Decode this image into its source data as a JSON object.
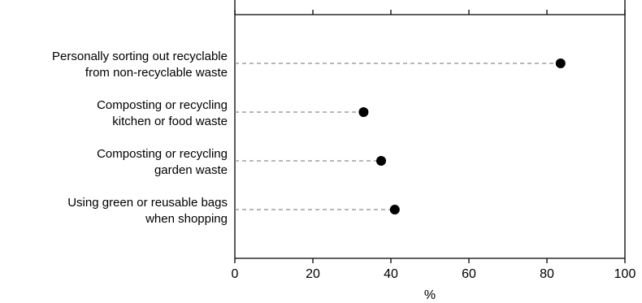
{
  "chart_data": {
    "type": "scatter",
    "orientation": "horizontal-dot",
    "title": "",
    "xlabel": "%",
    "ylabel": "",
    "xlim": [
      0,
      100
    ],
    "x_ticks": [
      0,
      20,
      40,
      60,
      80,
      100
    ],
    "x_tick_labels": [
      "0",
      "20",
      "40",
      "60",
      "80",
      "100"
    ],
    "grid": false,
    "categories": [
      [
        "Personally sorting out recyclable",
        "from non-recyclable waste"
      ],
      [
        "Composting or recycling",
        "kitchen or food waste"
      ],
      [
        "Composting or recycling",
        "garden waste"
      ],
      [
        "Using green or reusable bags",
        "when shopping"
      ]
    ],
    "values": [
      83.5,
      33,
      37.5,
      41
    ],
    "colors": {
      "marker": "#000000",
      "leader": "#8c8c8c",
      "axis": "#000000"
    }
  }
}
